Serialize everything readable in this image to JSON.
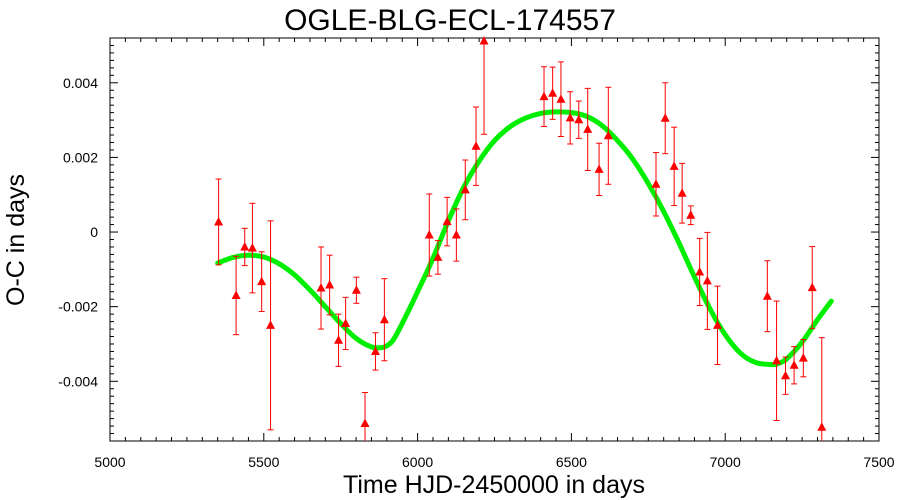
{
  "chart_data": {
    "type": "scatter",
    "title": "OGLE-BLG-ECL-174557",
    "xlabel": "Time HJD-2450000 in days",
    "ylabel": "O-C in days",
    "xlim": [
      5000,
      7500
    ],
    "ylim": [
      -0.0056,
      0.0052
    ],
    "xticks": [
      5000,
      5500,
      6000,
      6500,
      7000,
      7500
    ],
    "xtick_labels": [
      "5000",
      "5500",
      "6000",
      "6500",
      "7000",
      "7500"
    ],
    "yticks": [
      -0.004,
      -0.002,
      0,
      0.002,
      0.004
    ],
    "ytick_labels": [
      "-0.004",
      "-0.002",
      "0",
      "0.002",
      "0.004"
    ],
    "grid": false,
    "colors": {
      "points": "#ff0000",
      "fit": "#00ee00",
      "axes": "#000000"
    },
    "series": [
      {
        "type": "scatter-errorbar",
        "marker": "triangle",
        "points": [
          {
            "x": 5353,
            "y": 0.00027,
            "err": 0.00115
          },
          {
            "x": 5410,
            "y": -0.0017,
            "err": 0.00105
          },
          {
            "x": 5438,
            "y": -0.0004,
            "err": 0.0005
          },
          {
            "x": 5463,
            "y": -0.00043,
            "err": 0.0012
          },
          {
            "x": 5493,
            "y": -0.00133,
            "err": 0.0008
          },
          {
            "x": 5522,
            "y": -0.0025,
            "err": 0.0028
          },
          {
            "x": 5686,
            "y": -0.0015,
            "err": 0.0011
          },
          {
            "x": 5714,
            "y": -0.00142,
            "err": 0.0008
          },
          {
            "x": 5743,
            "y": -0.0029,
            "err": 0.0007
          },
          {
            "x": 5766,
            "y": -0.00245,
            "err": 0.0007
          },
          {
            "x": 5801,
            "y": -0.00156,
            "err": 0.00035
          },
          {
            "x": 5829,
            "y": -0.00513,
            "err": 0.00083
          },
          {
            "x": 5863,
            "y": -0.0032,
            "err": 0.0005
          },
          {
            "x": 5892,
            "y": -0.00235,
            "err": 0.0011
          },
          {
            "x": 6038,
            "y": -8e-05,
            "err": 0.0011
          },
          {
            "x": 6066,
            "y": -0.00068,
            "err": 0.00045
          },
          {
            "x": 6096,
            "y": 0.00028,
            "err": 0.00065
          },
          {
            "x": 6126,
            "y": -8e-05,
            "err": 0.0007
          },
          {
            "x": 6155,
            "y": 0.00113,
            "err": 0.0008
          },
          {
            "x": 6190,
            "y": 0.0023,
            "err": 0.00105
          },
          {
            "x": 6216,
            "y": 0.00512,
            "err": 0.0025
          },
          {
            "x": 6411,
            "y": 0.00363,
            "err": 0.0008
          },
          {
            "x": 6439,
            "y": 0.00372,
            "err": 0.0007
          },
          {
            "x": 6466,
            "y": 0.00356,
            "err": 0.001
          },
          {
            "x": 6496,
            "y": 0.00306,
            "err": 0.0007
          },
          {
            "x": 6524,
            "y": 0.00301,
            "err": 0.0005
          },
          {
            "x": 6553,
            "y": 0.00275,
            "err": 0.0011
          },
          {
            "x": 6590,
            "y": 0.00168,
            "err": 0.0007
          },
          {
            "x": 6620,
            "y": 0.00258,
            "err": 0.0013
          },
          {
            "x": 6775,
            "y": 0.00128,
            "err": 0.00085
          },
          {
            "x": 6805,
            "y": 0.00305,
            "err": 0.00095
          },
          {
            "x": 6834,
            "y": 0.00176,
            "err": 0.00105
          },
          {
            "x": 6860,
            "y": 0.00104,
            "err": 0.0008
          },
          {
            "x": 6888,
            "y": 0.00045,
            "err": 0.00025
          },
          {
            "x": 6917,
            "y": -0.00107,
            "err": 0.0009
          },
          {
            "x": 6942,
            "y": -0.00131,
            "err": 0.0013
          },
          {
            "x": 6975,
            "y": -0.0025,
            "err": 0.00105
          },
          {
            "x": 7137,
            "y": -0.00172,
            "err": 0.00095
          },
          {
            "x": 7167,
            "y": -0.00345,
            "err": 0.0016
          },
          {
            "x": 7196,
            "y": -0.00385,
            "err": 0.0005
          },
          {
            "x": 7224,
            "y": -0.00357,
            "err": 0.0005
          },
          {
            "x": 7254,
            "y": -0.00338,
            "err": 0.0005
          },
          {
            "x": 7283,
            "y": -0.00149,
            "err": 0.0011
          },
          {
            "x": 7314,
            "y": -0.00523,
            "err": 0.0024
          }
        ]
      },
      {
        "type": "line",
        "x": [
          5350,
          5400,
          5450,
          5500,
          5550,
          5600,
          5650,
          5700,
          5750,
          5800,
          5850,
          5880,
          5900,
          5920,
          5950,
          6000,
          6050,
          6100,
          6150,
          6200,
          6250,
          6300,
          6350,
          6400,
          6450,
          6500,
          6550,
          6600,
          6650,
          6700,
          6750,
          6800,
          6850,
          6900,
          6950,
          7000,
          7050,
          7100,
          7150,
          7170,
          7200,
          7250,
          7300,
          7345
        ],
        "y": [
          -0.00083,
          -0.00068,
          -0.00062,
          -0.00067,
          -0.00085,
          -0.00115,
          -0.00155,
          -0.002,
          -0.00245,
          -0.00285,
          -0.00308,
          -0.0031,
          -0.00305,
          -0.0029,
          -0.00245,
          -0.0016,
          -0.0007,
          0.0003,
          0.0012,
          0.0019,
          0.00245,
          0.00282,
          0.00305,
          0.00318,
          0.00322,
          0.0032,
          0.0031,
          0.00285,
          0.00245,
          0.00195,
          0.0013,
          0.00055,
          -0.0003,
          -0.0012,
          -0.00205,
          -0.00275,
          -0.00325,
          -0.0035,
          -0.00355,
          -0.00353,
          -0.0034,
          -0.00295,
          -0.00235,
          -0.00185
        ]
      }
    ]
  }
}
